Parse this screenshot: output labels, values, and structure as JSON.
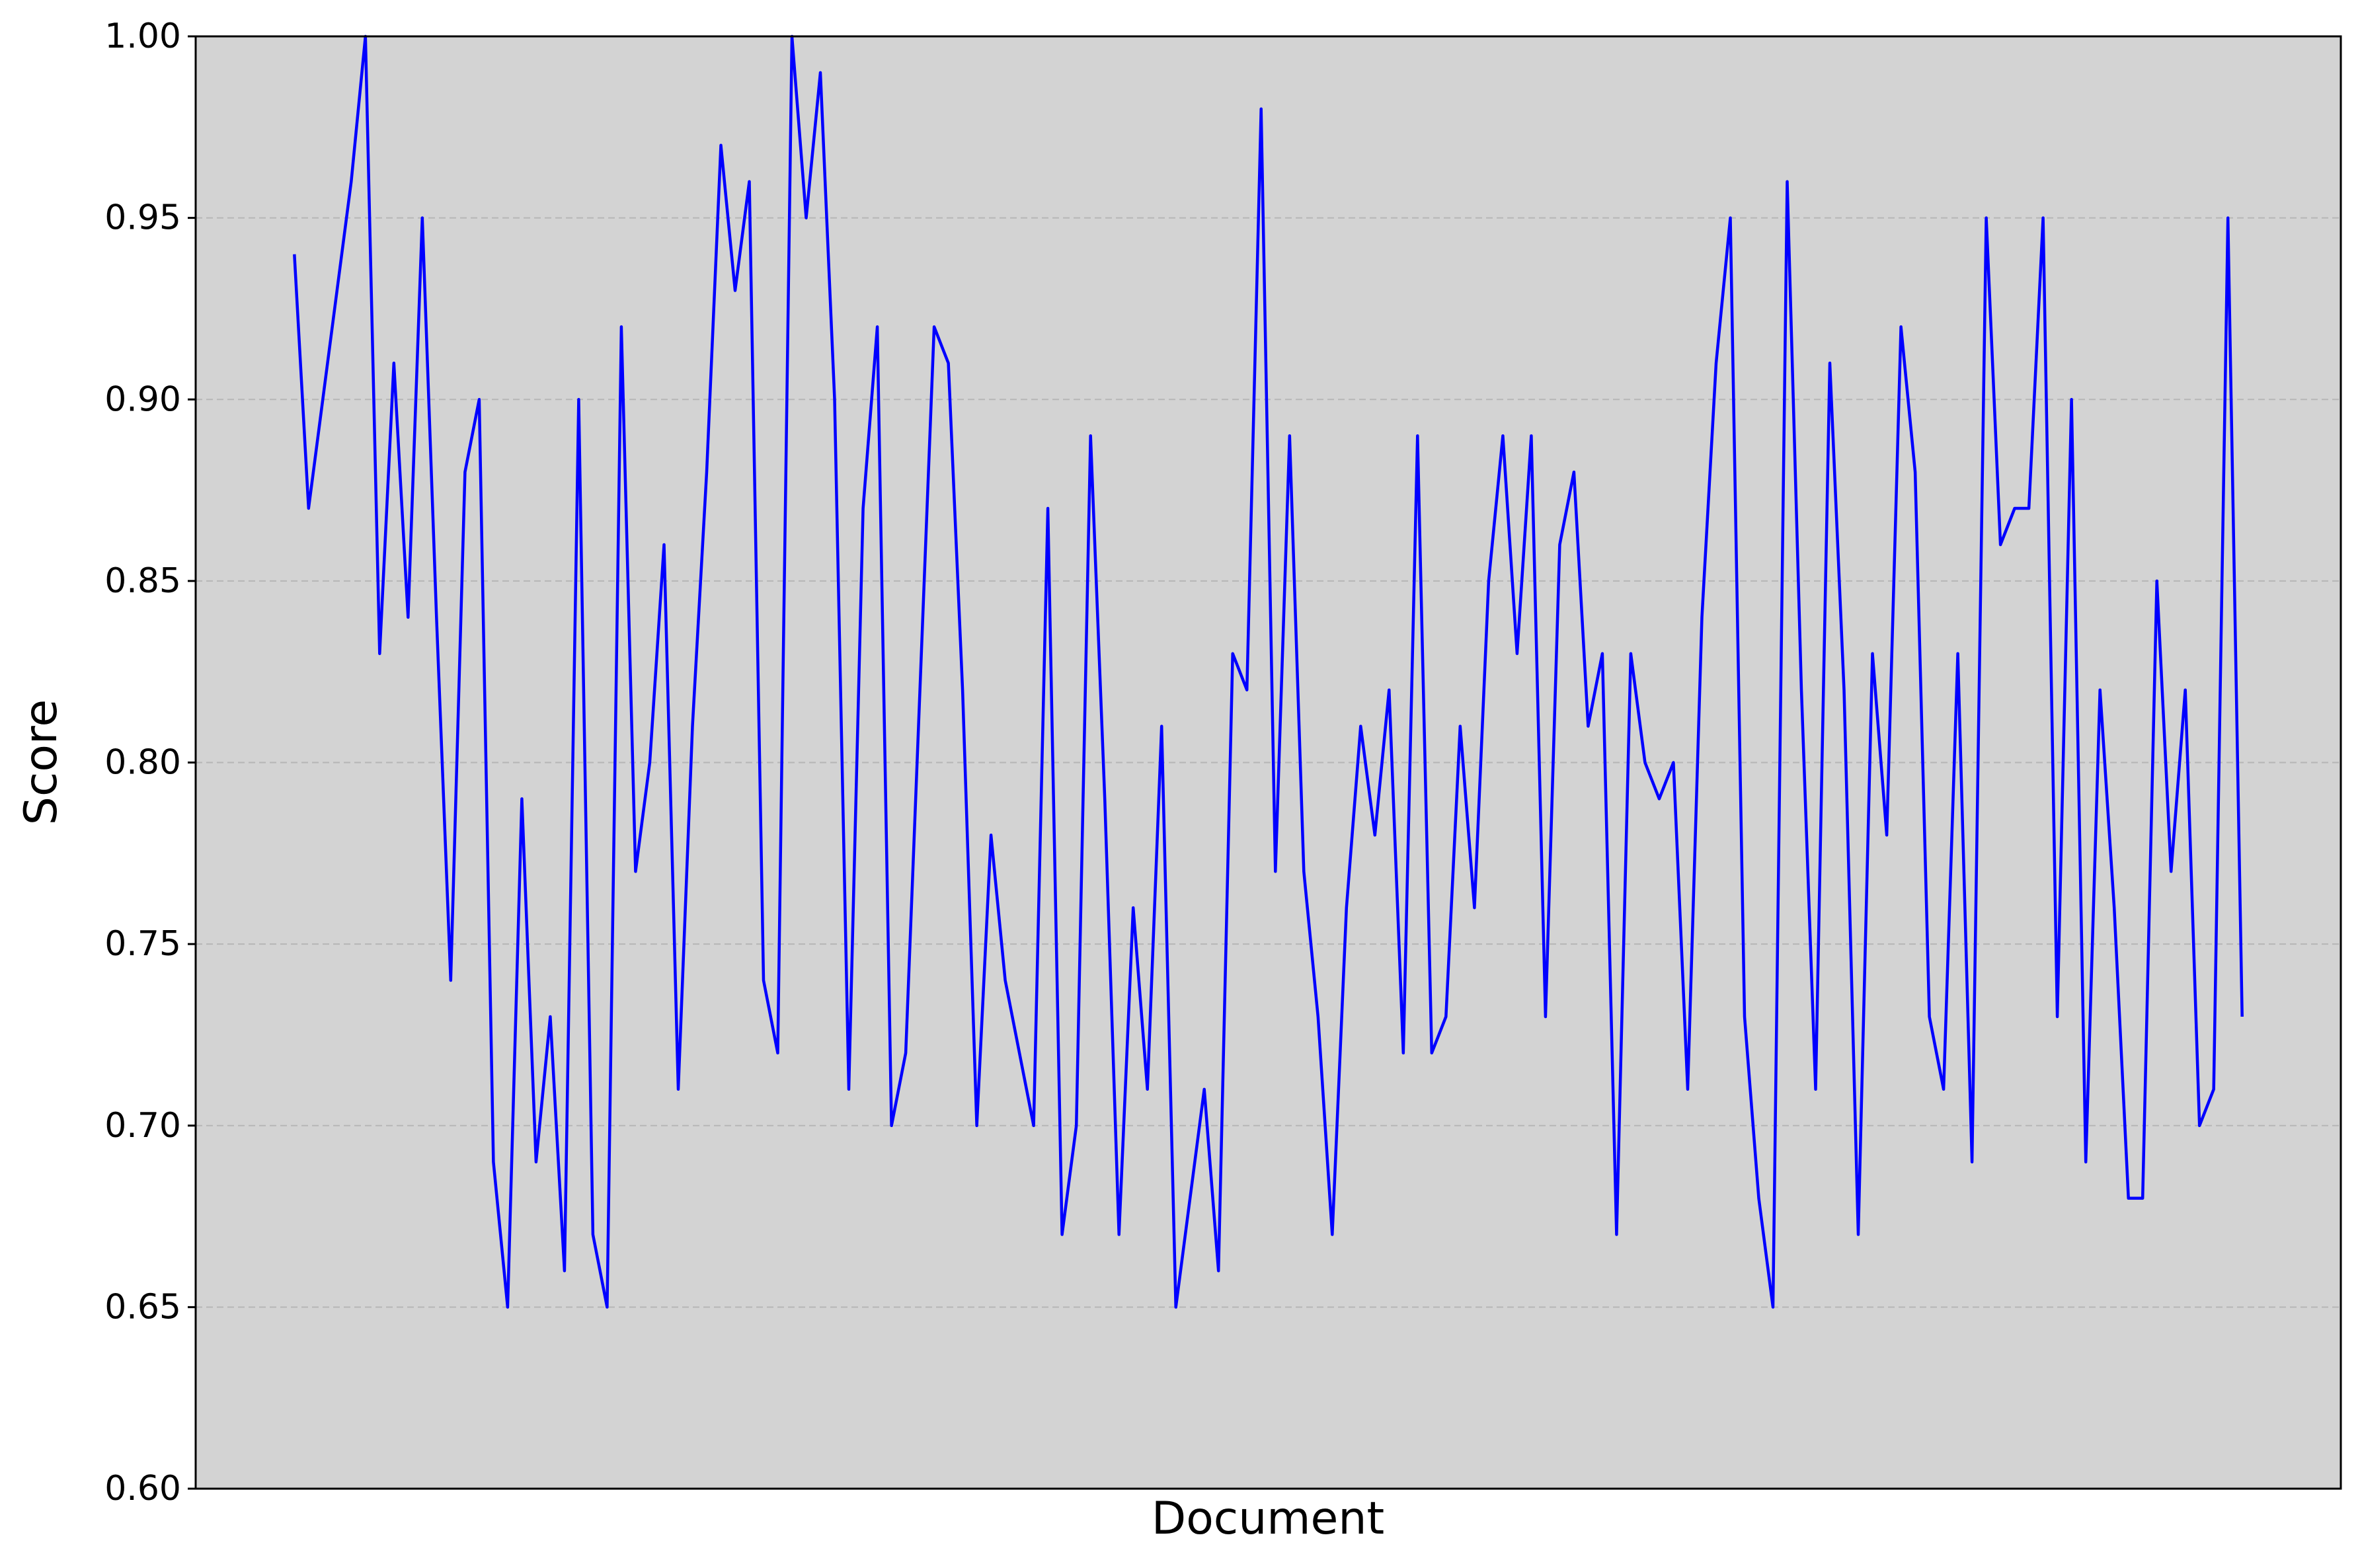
{
  "chart_data": {
    "type": "line",
    "xlabel": "Document",
    "ylabel": "Score",
    "series": [
      {
        "color": "#0000ff",
        "values": [
          0.94,
          0.87,
          0.9,
          0.93,
          0.96,
          1.0,
          0.83,
          0.91,
          0.84,
          0.95,
          0.84,
          0.74,
          0.88,
          0.9,
          0.69,
          0.65,
          0.79,
          0.69,
          0.73,
          0.66,
          0.9,
          0.67,
          0.65,
          0.92,
          0.77,
          0.8,
          0.86,
          0.71,
          0.81,
          0.88,
          0.97,
          0.93,
          0.96,
          0.74,
          0.72,
          1.0,
          0.95,
          0.99,
          0.9,
          0.71,
          0.87,
          0.92,
          0.7,
          0.72,
          0.82,
          0.92,
          0.91,
          0.82,
          0.7,
          0.78,
          0.74,
          0.72,
          0.7,
          0.87,
          0.67,
          0.7,
          0.89,
          0.79,
          0.67,
          0.76,
          0.71,
          0.81,
          0.65,
          0.68,
          0.71,
          0.66,
          0.83,
          0.82,
          0.98,
          0.77,
          0.89,
          0.77,
          0.73,
          0.67,
          0.76,
          0.81,
          0.78,
          0.82,
          0.72,
          0.89,
          0.72,
          0.73,
          0.81,
          0.76,
          0.85,
          0.89,
          0.83,
          0.89,
          0.73,
          0.86,
          0.88,
          0.81,
          0.83,
          0.67,
          0.83,
          0.8,
          0.79,
          0.8,
          0.71,
          0.84,
          0.91,
          0.95,
          0.73,
          0.68,
          0.65,
          0.96,
          0.82,
          0.71,
          0.91,
          0.82,
          0.67,
          0.83,
          0.78,
          0.92,
          0.88,
          0.73,
          0.71,
          0.83,
          0.69,
          0.95,
          0.86,
          0.87,
          0.87,
          0.95,
          0.73,
          0.9,
          0.69,
          0.82,
          0.76,
          0.68,
          0.68,
          0.85,
          0.77,
          0.82,
          0.7,
          0.71,
          0.95,
          0.73
        ]
      }
    ],
    "ylim": [
      0.6,
      1.0
    ],
    "yticks": [
      {
        "value": 0.6,
        "label": "0.60"
      },
      0.65,
      {
        "value": 0.7,
        "label": "0.70"
      },
      0.75,
      {
        "value": 0.8,
        "label": "0.80"
      },
      0.85,
      {
        "value": 0.9,
        "label": "0.90"
      },
      0.95,
      {
        "value": 1.0,
        "label": "1.00"
      }
    ],
    "grid": true,
    "background": "#d3d3d3"
  }
}
